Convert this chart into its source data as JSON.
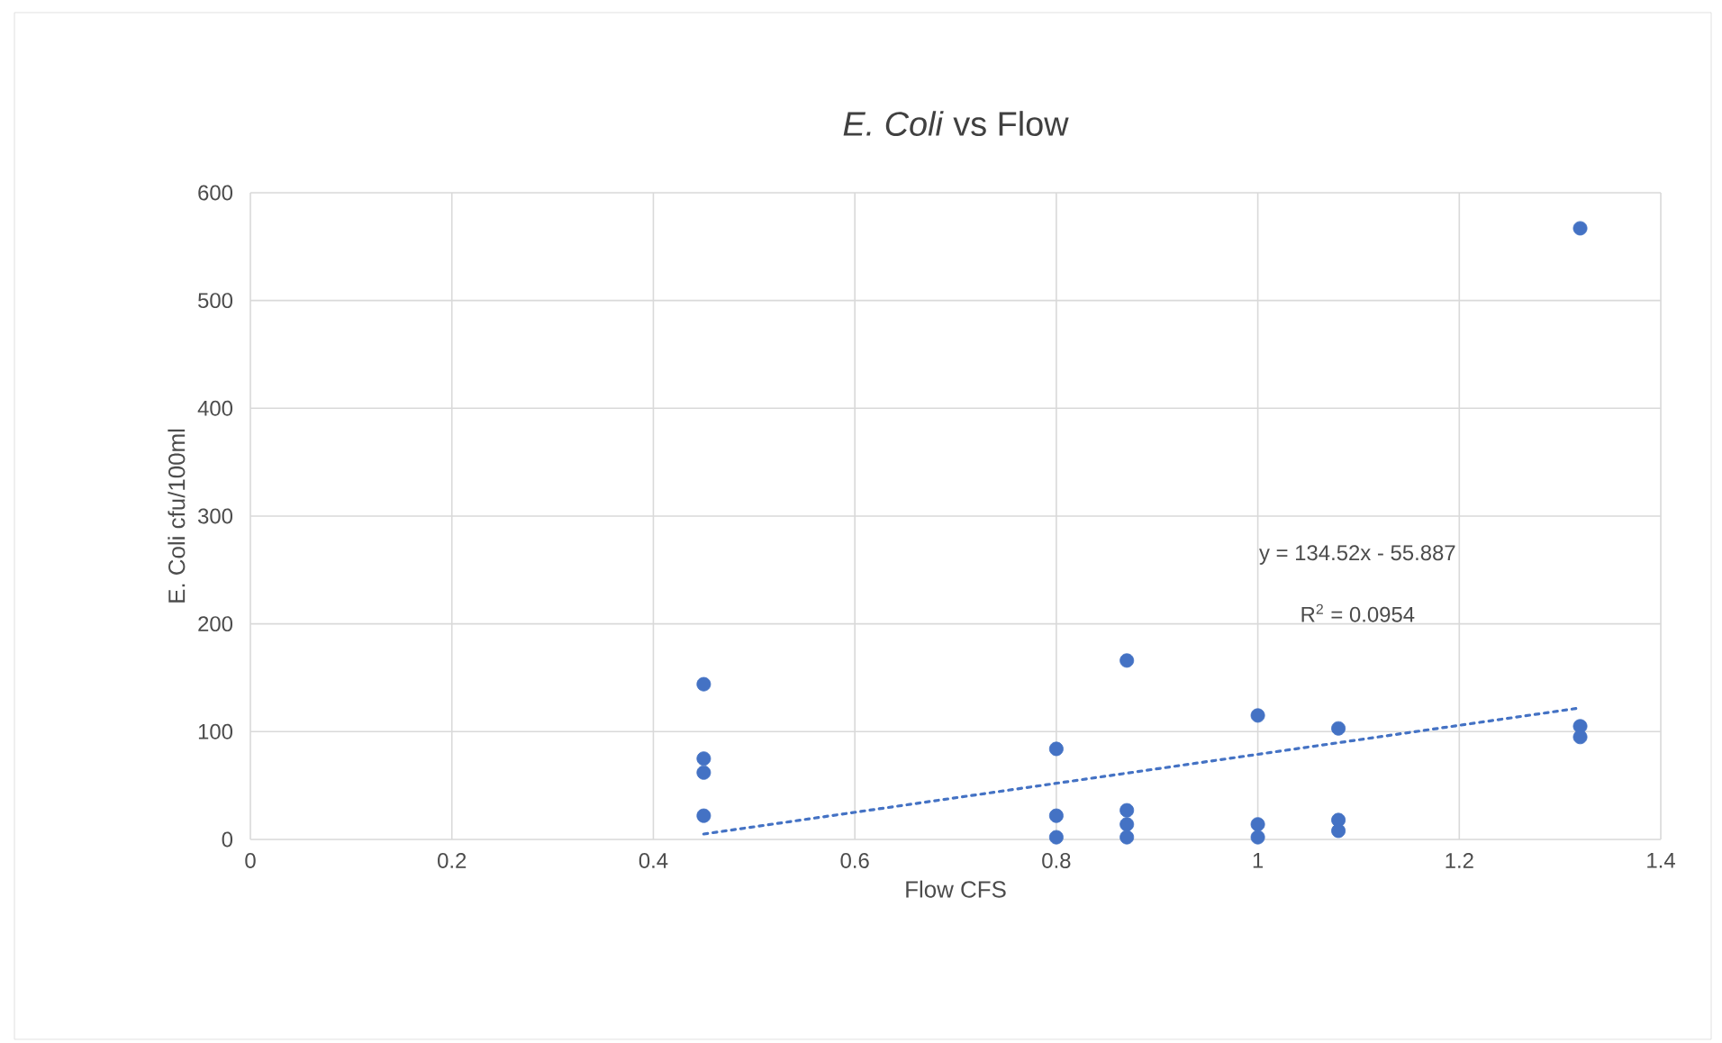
{
  "chart_data": {
    "type": "scatter",
    "title": "*E. Coli* vs Flow",
    "xlabel": "Flow CFS",
    "ylabel": "E. Coli cfu/100ml",
    "annotations": [
      "y = 134.52x - 55.887",
      "R$^{2}$ = 0.0954"
    ],
    "series": [
      {
        "color": "#4472c4",
        "marker": "circle",
        "x": [
          0.45,
          0.45,
          0.45,
          0.45,
          0.8,
          0.8,
          0.8,
          0.87,
          0.87,
          0.87,
          0.87,
          1.0,
          1.0,
          1.0,
          1.08,
          1.08,
          1.08,
          1.32,
          1.32,
          1.32
        ],
        "values": [
          144,
          75,
          62,
          22,
          84,
          22,
          2,
          166,
          27,
          14,
          2,
          115,
          14,
          2,
          103,
          18,
          8,
          567,
          105,
          95
        ]
      },
      {
        "type": "line",
        "color": "#4472c4",
        "marker": "none",
        "line_style": "dotted",
        "x": [
          0.45,
          1.32
        ],
        "values": [
          5,
          122
        ]
      }
    ],
    "xlim": [
      0,
      1.4
    ],
    "ylim": [
      0,
      600
    ],
    "xticks": [
      0,
      0.2,
      0.4,
      0.6,
      0.8,
      1,
      1.2,
      1.4
    ],
    "yticks": [
      0,
      100,
      200,
      300,
      400,
      500,
      600
    ],
    "grid": true,
    "legend": false
  }
}
